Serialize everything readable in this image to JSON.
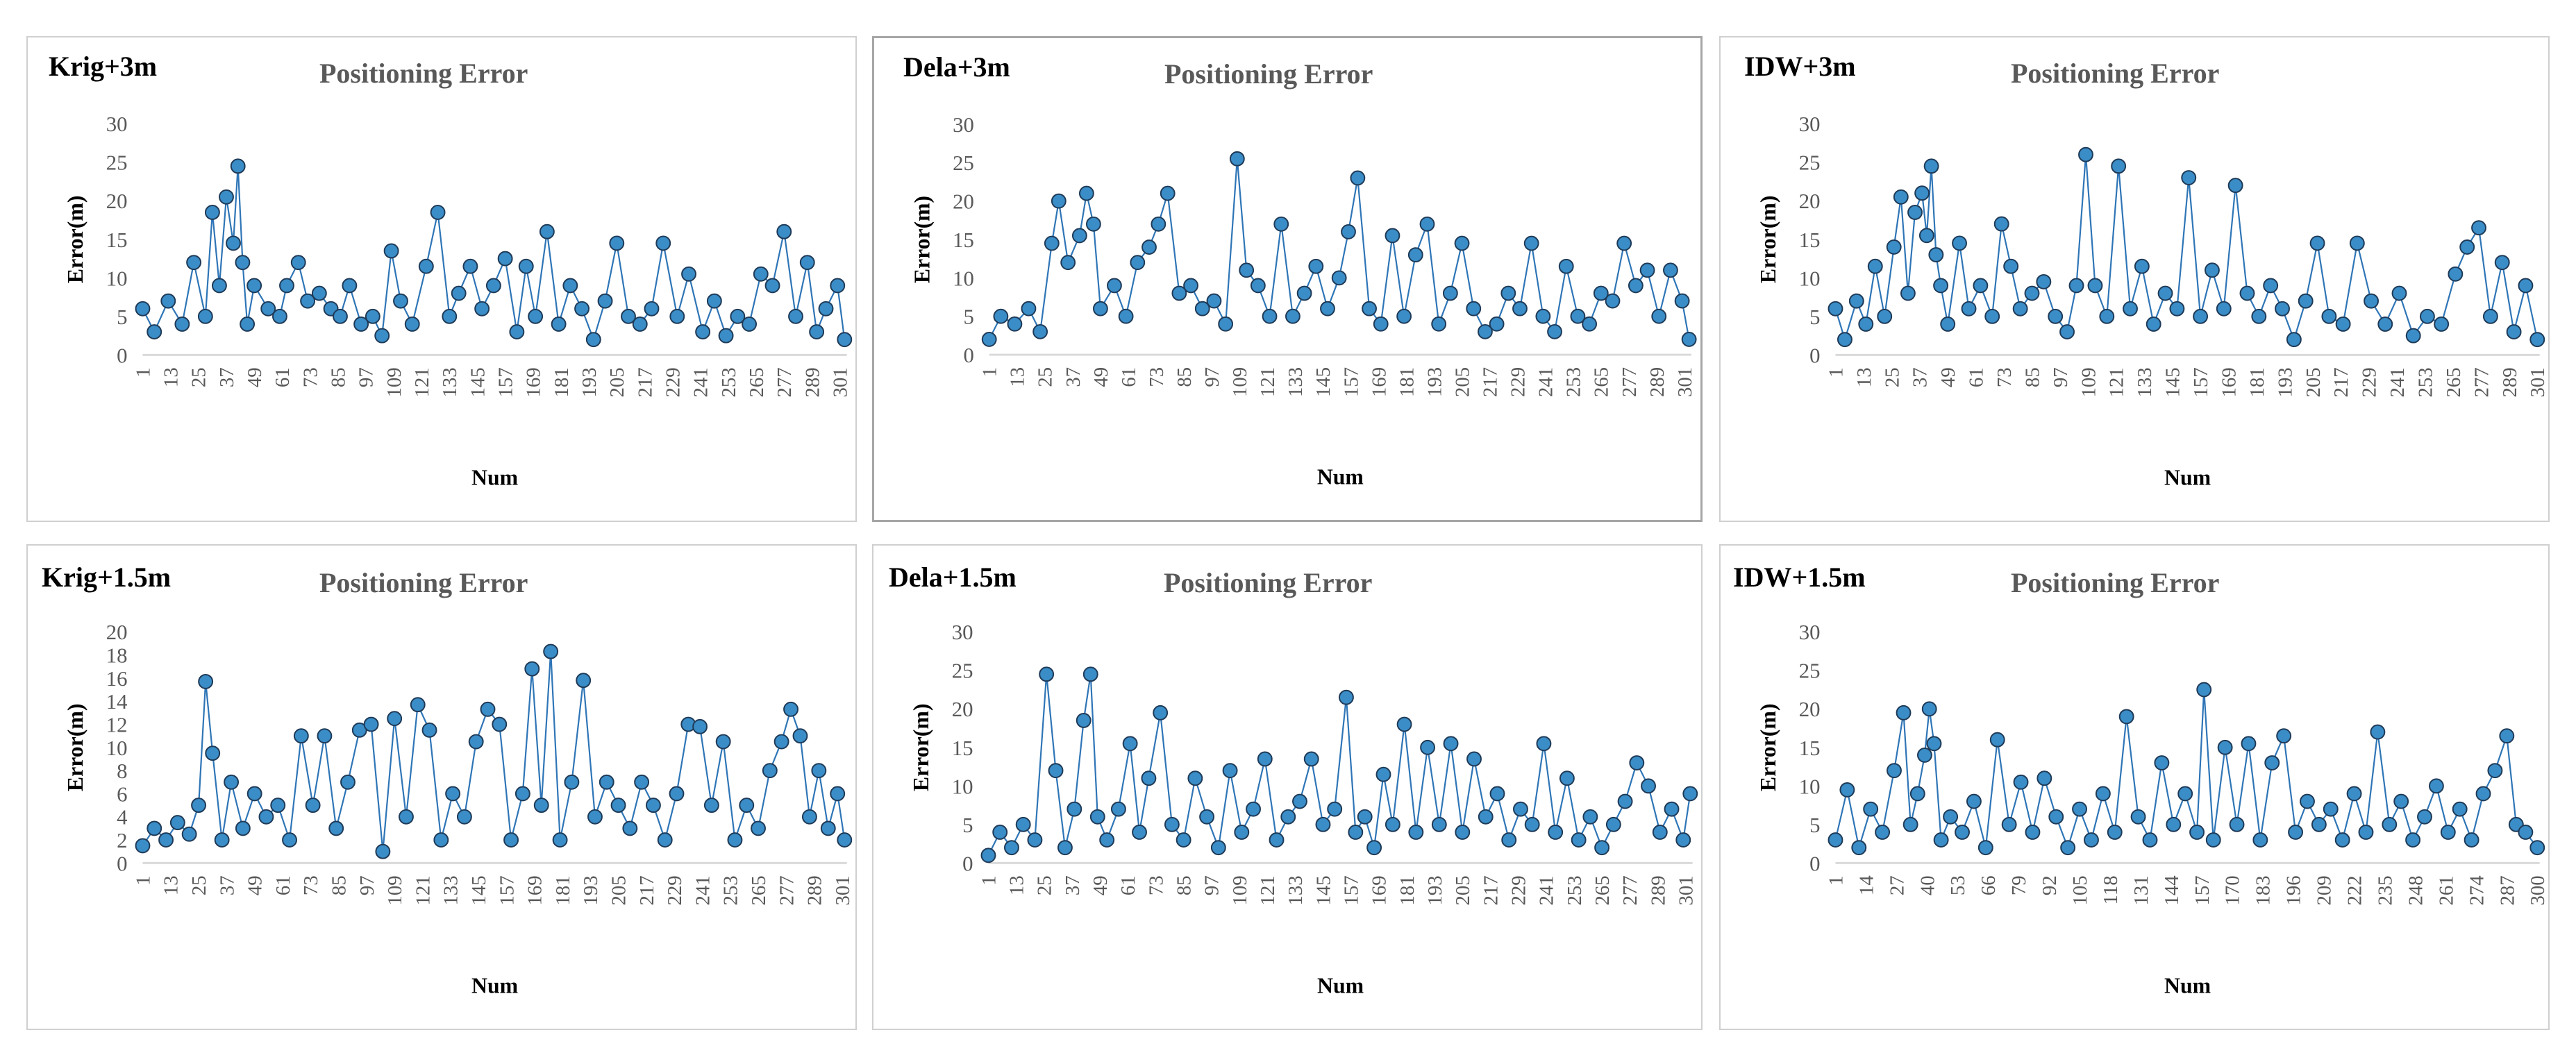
{
  "colors": {
    "series": "#2E75B6",
    "marker": "#3A8DC7",
    "marker_edge": "#1F3A57",
    "title": "#595959",
    "tick": "#595959",
    "axis": "#D9D9D9",
    "border": "#D0D0D0"
  },
  "chart_data": [
    {
      "type": "line",
      "tag": "Krig+3m",
      "title": "Positioning Error",
      "xlabel": "Num",
      "ylabel": "Error(m)",
      "ylim": [
        0,
        30
      ],
      "yticks": [
        0,
        5,
        10,
        15,
        20,
        25,
        30
      ],
      "xticks": [
        "1",
        "13",
        "25",
        "37",
        "49",
        "61",
        "73",
        "85",
        "97",
        "109",
        "121",
        "133",
        "145",
        "157",
        "169",
        "181",
        "193",
        "205",
        "217",
        "229",
        "241",
        "253",
        "265",
        "277",
        "289",
        "301"
      ],
      "series": [
        {
          "name": "Positioning Error",
          "x": [
            1,
            6,
            12,
            18,
            23,
            28,
            31,
            34,
            37,
            40,
            42,
            44,
            46,
            49,
            55,
            60,
            63,
            68,
            72,
            77,
            82,
            86,
            90,
            95,
            100,
            104,
            108,
            112,
            117,
            123,
            128,
            133,
            137,
            142,
            147,
            152,
            157,
            162,
            166,
            170,
            175,
            180,
            185,
            190,
            195,
            200,
            205,
            210,
            215,
            220,
            225,
            231,
            236,
            242,
            247,
            252,
            257,
            262,
            267,
            272,
            277,
            282,
            287,
            291,
            295,
            300,
            303
          ],
          "y": [
            6,
            3,
            7,
            4,
            12,
            5,
            18.5,
            9,
            20.5,
            14.5,
            24.5,
            12,
            4,
            9,
            6,
            5,
            9,
            12,
            7,
            8,
            6,
            5,
            9,
            4,
            5,
            2.5,
            13.5,
            7,
            4,
            11.5,
            18.5,
            5,
            8,
            11.5,
            6,
            9,
            12.5,
            3,
            11.5,
            5,
            16,
            4,
            9,
            6,
            2,
            7,
            14.5,
            5,
            4,
            6,
            14.5,
            5,
            10.5,
            3,
            7,
            2.5,
            5,
            4,
            10.5,
            9,
            16,
            5,
            12,
            3,
            6,
            9,
            2
          ]
        }
      ]
    },
    {
      "type": "line",
      "tag": "Dela+3m",
      "title": "Positioning Error",
      "xlabel": "Num",
      "ylabel": "Error(m)",
      "ylim": [
        0,
        30
      ],
      "yticks": [
        0,
        5,
        10,
        15,
        20,
        25,
        30
      ],
      "xticks": [
        "1",
        "13",
        "25",
        "37",
        "49",
        "61",
        "73",
        "85",
        "97",
        "109",
        "121",
        "133",
        "145",
        "157",
        "169",
        "181",
        "193",
        "205",
        "217",
        "229",
        "241",
        "253",
        "265",
        "277",
        "289",
        "301"
      ],
      "series": [
        {
          "name": "Positioning Error",
          "x": [
            1,
            6,
            12,
            18,
            23,
            28,
            31,
            35,
            40,
            43,
            46,
            49,
            55,
            60,
            65,
            70,
            74,
            78,
            83,
            88,
            93,
            98,
            103,
            108,
            112,
            117,
            122,
            127,
            132,
            137,
            142,
            147,
            152,
            156,
            160,
            165,
            170,
            175,
            180,
            185,
            190,
            195,
            200,
            205,
            210,
            215,
            220,
            225,
            230,
            235,
            240,
            245,
            250,
            255,
            260,
            265,
            270,
            275,
            280,
            285,
            290,
            295,
            300,
            303
          ],
          "y": [
            2,
            5,
            4,
            6,
            3,
            14.5,
            20,
            12,
            15.5,
            21,
            17,
            6,
            9,
            5,
            12,
            14,
            17,
            21,
            8,
            9,
            6,
            7,
            4,
            25.5,
            11,
            9,
            5,
            17,
            5,
            8,
            11.5,
            6,
            10,
            16,
            23,
            6,
            4,
            15.5,
            5,
            13,
            17,
            4,
            8,
            14.5,
            6,
            3,
            4,
            8,
            6,
            14.5,
            5,
            3,
            11.5,
            5,
            4,
            8,
            7,
            14.5,
            9,
            11,
            5,
            11,
            7,
            2
          ]
        }
      ]
    },
    {
      "type": "line",
      "tag": "IDW+3m",
      "title": "Positioning Error",
      "xlabel": "Num",
      "ylabel": "Error(m)",
      "ylim": [
        0,
        30
      ],
      "yticks": [
        0,
        5,
        10,
        15,
        20,
        25,
        30
      ],
      "xticks": [
        "1",
        "13",
        "25",
        "37",
        "49",
        "61",
        "73",
        "85",
        "97",
        "109",
        "121",
        "133",
        "145",
        "157",
        "169",
        "181",
        "193",
        "205",
        "217",
        "229",
        "241",
        "253",
        "265",
        "277",
        "289",
        "301"
      ],
      "series": [
        {
          "name": "Positioning Error",
          "x": [
            1,
            5,
            10,
            14,
            18,
            22,
            26,
            29,
            32,
            35,
            38,
            40,
            42,
            44,
            46,
            49,
            54,
            58,
            63,
            68,
            72,
            76,
            80,
            85,
            90,
            95,
            100,
            104,
            108,
            112,
            117,
            122,
            127,
            132,
            137,
            142,
            147,
            152,
            157,
            162,
            167,
            172,
            177,
            182,
            187,
            192,
            197,
            202,
            207,
            212,
            218,
            224,
            230,
            236,
            242,
            248,
            254,
            260,
            266,
            271,
            276,
            281,
            286,
            291,
            296,
            301
          ],
          "y": [
            6,
            2,
            7,
            4,
            11.5,
            5,
            14,
            20.5,
            8,
            18.5,
            21,
            15.5,
            24.5,
            13,
            9,
            4,
            14.5,
            6,
            9,
            5,
            17,
            11.5,
            6,
            8,
            9.5,
            5,
            3,
            9,
            26,
            9,
            5,
            24.5,
            6,
            11.5,
            4,
            8,
            6,
            23,
            5,
            11,
            6,
            22,
            8,
            5,
            9,
            6,
            2,
            7,
            14.5,
            5,
            4,
            14.5,
            7,
            4,
            8,
            2.5,
            5,
            4,
            10.5,
            14,
            16.5,
            5,
            12,
            3,
            9,
            2
          ]
        }
      ]
    },
    {
      "type": "line",
      "tag": "Krig+1.5m",
      "title": "Positioning Error",
      "xlabel": "Num",
      "ylabel": "Error(m)",
      "ylim": [
        0,
        20
      ],
      "yticks": [
        0,
        2,
        4,
        6,
        8,
        10,
        12,
        14,
        16,
        18,
        20
      ],
      "xticks": [
        "1",
        "13",
        "25",
        "37",
        "49",
        "61",
        "73",
        "85",
        "97",
        "109",
        "121",
        "133",
        "145",
        "157",
        "169",
        "181",
        "193",
        "205",
        "217",
        "229",
        "241",
        "253",
        "265",
        "277",
        "289",
        "301"
      ],
      "series": [
        {
          "name": "Positioning Error",
          "x": [
            1,
            6,
            11,
            16,
            21,
            25,
            28,
            31,
            35,
            39,
            44,
            49,
            54,
            59,
            64,
            69,
            74,
            79,
            84,
            89,
            94,
            99,
            104,
            109,
            114,
            119,
            124,
            129,
            134,
            139,
            144,
            149,
            154,
            159,
            164,
            168,
            172,
            176,
            180,
            185,
            190,
            195,
            200,
            205,
            210,
            215,
            220,
            225,
            230,
            235,
            240,
            245,
            250,
            255,
            260,
            265,
            270,
            275,
            279,
            283,
            287,
            291,
            295,
            299,
            302
          ],
          "y": [
            1.5,
            3,
            2,
            3.5,
            2.5,
            5,
            15.7,
            9.5,
            2,
            7,
            3,
            6,
            4,
            5,
            2,
            11,
            5,
            11,
            3,
            7,
            11.5,
            12,
            1,
            12.5,
            4,
            13.7,
            11.5,
            2,
            6,
            4,
            10.5,
            13.3,
            12,
            2,
            6,
            16.8,
            5,
            18.3,
            2,
            7,
            15.8,
            4,
            7,
            5,
            3,
            7,
            5,
            2,
            6,
            12,
            11.8,
            5,
            10.5,
            2,
            5,
            3,
            8,
            10.5,
            13.3,
            11,
            4,
            8,
            3,
            6,
            2
          ]
        }
      ]
    },
    {
      "type": "line",
      "tag": "Dela+1.5m",
      "title": "Positioning Error",
      "xlabel": "Num",
      "ylabel": "Error(m)",
      "ylim": [
        0,
        30
      ],
      "yticks": [
        0,
        5,
        10,
        15,
        20,
        25,
        30
      ],
      "xticks": [
        "1",
        "13",
        "25",
        "37",
        "49",
        "61",
        "73",
        "85",
        "97",
        "109",
        "121",
        "133",
        "145",
        "157",
        "169",
        "181",
        "193",
        "205",
        "217",
        "229",
        "241",
        "253",
        "265",
        "277",
        "289",
        "301"
      ],
      "series": [
        {
          "name": "Positioning Error",
          "x": [
            1,
            6,
            11,
            16,
            21,
            26,
            30,
            34,
            38,
            42,
            45,
            48,
            52,
            57,
            62,
            66,
            70,
            75,
            80,
            85,
            90,
            95,
            100,
            105,
            110,
            115,
            120,
            125,
            130,
            135,
            140,
            145,
            150,
            155,
            159,
            163,
            167,
            171,
            175,
            180,
            185,
            190,
            195,
            200,
            205,
            210,
            215,
            220,
            225,
            230,
            235,
            240,
            245,
            250,
            255,
            260,
            265,
            270,
            275,
            280,
            285,
            290,
            295,
            300,
            303
          ],
          "y": [
            1,
            4,
            2,
            5,
            3,
            24.5,
            12,
            2,
            7,
            18.5,
            24.5,
            6,
            3,
            7,
            15.5,
            4,
            11,
            19.5,
            5,
            3,
            11,
            6,
            2,
            12,
            4,
            7,
            13.5,
            3,
            6,
            8,
            13.5,
            5,
            7,
            21.5,
            4,
            6,
            2,
            11.5,
            5,
            18,
            4,
            15,
            5,
            15.5,
            4,
            13.5,
            6,
            9,
            3,
            7,
            5,
            15.5,
            4,
            11,
            3,
            6,
            2,
            5,
            8,
            13,
            10,
            4,
            7,
            3,
            9
          ]
        }
      ]
    },
    {
      "type": "line",
      "tag": "IDW+1.5m",
      "title": "Positioning Error",
      "xlabel": "Num",
      "ylabel": "Error(m)",
      "ylim": [
        0,
        30
      ],
      "yticks": [
        0,
        5,
        10,
        15,
        20,
        25,
        30
      ],
      "xticks": [
        "1",
        "14",
        "27",
        "40",
        "53",
        "66",
        "79",
        "92",
        "105",
        "118",
        "131",
        "144",
        "157",
        "170",
        "183",
        "196",
        "209",
        "222",
        "235",
        "248",
        "261",
        "274",
        "287",
        "300"
      ],
      "series": [
        {
          "name": "Positioning Error",
          "x": [
            1,
            6,
            11,
            16,
            21,
            26,
            30,
            33,
            36,
            39,
            41,
            43,
            46,
            50,
            55,
            60,
            65,
            70,
            75,
            80,
            85,
            90,
            95,
            100,
            105,
            110,
            115,
            120,
            125,
            130,
            135,
            140,
            145,
            150,
            155,
            158,
            162,
            167,
            172,
            177,
            182,
            187,
            192,
            197,
            202,
            207,
            212,
            217,
            222,
            227,
            232,
            237,
            242,
            247,
            252,
            257,
            262,
            267,
            272,
            277,
            282,
            287,
            291,
            295,
            300
          ],
          "y": [
            3,
            9.5,
            2,
            7,
            4,
            12,
            19.5,
            5,
            9,
            14,
            20,
            15.5,
            3,
            6,
            4,
            8,
            2,
            16,
            5,
            10.5,
            4,
            11,
            6,
            2,
            7,
            3,
            9,
            4,
            19,
            6,
            3,
            13,
            5,
            9,
            4,
            22.5,
            3,
            15,
            5,
            15.5,
            3,
            13,
            16.5,
            4,
            8,
            5,
            7,
            3,
            9,
            4,
            17,
            5,
            8,
            3,
            6,
            10,
            4,
            7,
            3,
            9,
            12,
            16.5,
            5,
            4,
            2
          ]
        }
      ]
    }
  ]
}
